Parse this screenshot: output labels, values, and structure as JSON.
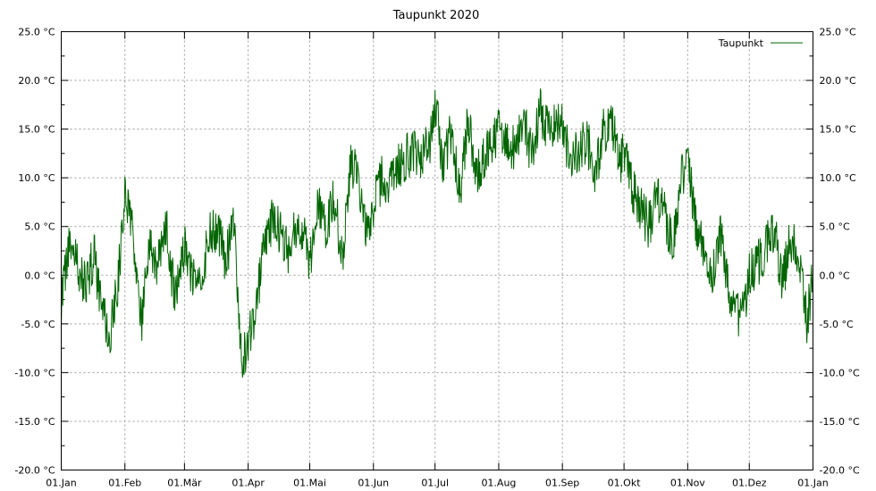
{
  "chart_data": {
    "type": "line",
    "title": "Taupunkt 2020",
    "xlabel": "",
    "ylabel": "",
    "ylim": [
      -20,
      25
    ],
    "y_ticks": [
      "-20.0 °C",
      "-15.0 °C",
      "-10.0 °C",
      "-5.0 °C",
      "0.0 °C",
      "5.0 °C",
      "10.0 °C",
      "15.0 °C",
      "20.0 °C",
      "25.0 °C"
    ],
    "y_tick_values": [
      -20,
      -15,
      -10,
      -5,
      0,
      5,
      10,
      15,
      20,
      25
    ],
    "x_ticks": [
      "01.Jan",
      "01.Feb",
      "01.Mär",
      "01.Apr",
      "01.Mai",
      "01.Jun",
      "01.Jul",
      "01.Aug",
      "01.Sep",
      "01.Okt",
      "01.Nov",
      "01.Dez",
      "01.Jan"
    ],
    "x_tick_days": [
      0,
      31,
      60,
      91,
      121,
      152,
      182,
      213,
      244,
      274,
      305,
      335,
      366
    ],
    "grid": true,
    "legend_position": "top-right",
    "series": [
      {
        "name": "Taupunkt",
        "color": "#006400",
        "x_unit": "days since 01.Jan 2020",
        "x": [
          0,
          4,
          8,
          12,
          16,
          20,
          24,
          28,
          31,
          35,
          39,
          43,
          47,
          51,
          55,
          60,
          64,
          68,
          72,
          76,
          80,
          84,
          88,
          91,
          95,
          99,
          103,
          107,
          111,
          115,
          118,
          121,
          125,
          129,
          133,
          137,
          141,
          145,
          149,
          152,
          156,
          160,
          164,
          168,
          172,
          176,
          180,
          182,
          186,
          190,
          194,
          198,
          202,
          206,
          210,
          213,
          217,
          221,
          225,
          229,
          233,
          237,
          241,
          244,
          248,
          252,
          256,
          260,
          264,
          268,
          272,
          274,
          278,
          282,
          286,
          290,
          294,
          298,
          302,
          305,
          309,
          313,
          317,
          321,
          325,
          329,
          333,
          335,
          339,
          343,
          347,
          351,
          355,
          359,
          363,
          366
        ],
        "y": [
          -3,
          3,
          1,
          -1,
          2,
          -4,
          -6,
          0,
          9,
          4,
          -5,
          3,
          1,
          5,
          -2,
          3,
          0,
          -1,
          4,
          5,
          1,
          6,
          -9,
          -7,
          -3,
          3,
          6,
          4,
          2,
          6,
          4,
          1,
          7,
          5,
          8,
          1,
          12,
          9,
          4,
          7,
          10,
          9,
          11,
          12,
          13,
          12,
          14,
          18,
          11,
          15,
          8,
          16,
          10,
          12,
          14,
          15,
          14,
          13,
          16,
          12,
          17,
          15,
          16,
          15,
          12,
          13,
          14,
          10,
          15,
          16,
          11,
          13,
          9,
          7,
          5,
          8,
          6,
          3,
          10,
          12,
          5,
          3,
          0,
          4,
          -2,
          -4,
          -3,
          0,
          1,
          3,
          5,
          -1,
          4,
          2,
          -5,
          0
        ]
      }
    ]
  }
}
